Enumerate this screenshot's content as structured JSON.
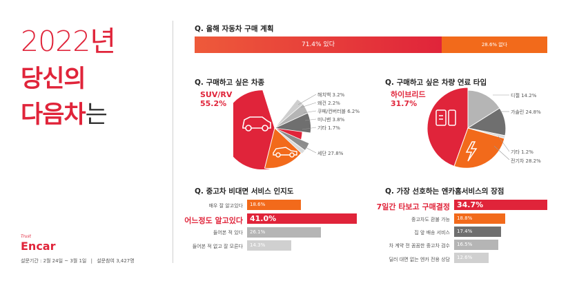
{
  "hero": {
    "year": "2022년",
    "line1": "당신의",
    "line2_bold": "다음차",
    "line2_rest": "는"
  },
  "brand": {
    "tagline": "Trust",
    "logo": "Encar"
  },
  "footer": {
    "period": "설문기간 : 2월 24일 ~ 3월 1일",
    "sep": "|",
    "participants": "설문참여 3,427명"
  },
  "colors": {
    "red": "#e0243a",
    "orange": "#f26a1b",
    "gray": "#9b9b9b",
    "dark_gray": "#6f6f6f",
    "light_gray": "#bdbdbd"
  },
  "icons": {
    "suv": "car-outline-icon",
    "sedan": "sedan-outline-icon",
    "hybrid": "battery-fuel-icon",
    "electric": "lightning-icon"
  },
  "chart_data": [
    {
      "type": "bar",
      "title": "Q. 올해 자동차 구매 계획",
      "stacked": true,
      "categories": [
        "있다",
        "없다"
      ],
      "values": [
        71.4,
        28.6
      ],
      "labels": [
        "71.4% 있다",
        "28.6% 없다"
      ]
    },
    {
      "type": "pie",
      "title": "Q. 구매하고 싶은 차종",
      "categories": [
        "SUV/RV",
        "세단",
        "기타",
        "미니밴",
        "쿠페/컨버터블",
        "왜건",
        "해치백"
      ],
      "values": [
        55.2,
        27.8,
        1.7,
        3.8,
        6.2,
        2.2,
        3.2
      ],
      "highlight": {
        "label": "SUV/RV",
        "value": "55.2%"
      },
      "labels": [
        "SUV/RV 55.2%",
        "세단 27.8%",
        "기타 1.7%",
        "미니밴 3.8%",
        "쿠페/컨버터블 6.2%",
        "왜건 2.2%",
        "해치백 3.2%"
      ]
    },
    {
      "type": "pie",
      "title": "Q. 구매하고 싶은 차량 연료 타입",
      "categories": [
        "하이브리드",
        "디젤",
        "가솔린",
        "기타",
        "전기차"
      ],
      "values": [
        31.7,
        14.2,
        24.8,
        1.2,
        28.2
      ],
      "highlight": {
        "label": "하이브리드",
        "value": "31.7%"
      },
      "labels": [
        "하이브리드 31.7%",
        "디젤 14.2%",
        "가솔린 24.8%",
        "기타 1.2%",
        "전기차 28.2%"
      ]
    },
    {
      "type": "bar",
      "orientation": "horizontal",
      "title": "Q. 중고차 비대면 서비스 인지도",
      "categories": [
        "매우 잘 알고있다",
        "어느정도 알고있다",
        "들어본 적 있다",
        "들어본 적 없고 잘 모른다"
      ],
      "values": [
        18.6,
        41.0,
        26.1,
        14.3
      ],
      "value_labels": [
        "18.6%",
        "41.0%",
        "26.1%",
        "14.3%"
      ],
      "highlight_index": 1
    },
    {
      "type": "bar",
      "orientation": "horizontal",
      "title": "Q. 가장 선호하는 엔카홈서비스의 장점",
      "categories": [
        "7일간 타보고 구매결정",
        "중고차도 환불 가능",
        "집 앞 배송 서비스",
        "차 계약 전 꼼꼼한 중고차 검수",
        "딜러 대면 없는 엔카 전용 상담"
      ],
      "values": [
        34.7,
        18.8,
        17.4,
        16.5,
        12.6
      ],
      "value_labels": [
        "34.7%",
        "18.8%",
        "17.4%",
        "16.5%",
        "12.6%"
      ],
      "highlight_index": 0
    }
  ]
}
